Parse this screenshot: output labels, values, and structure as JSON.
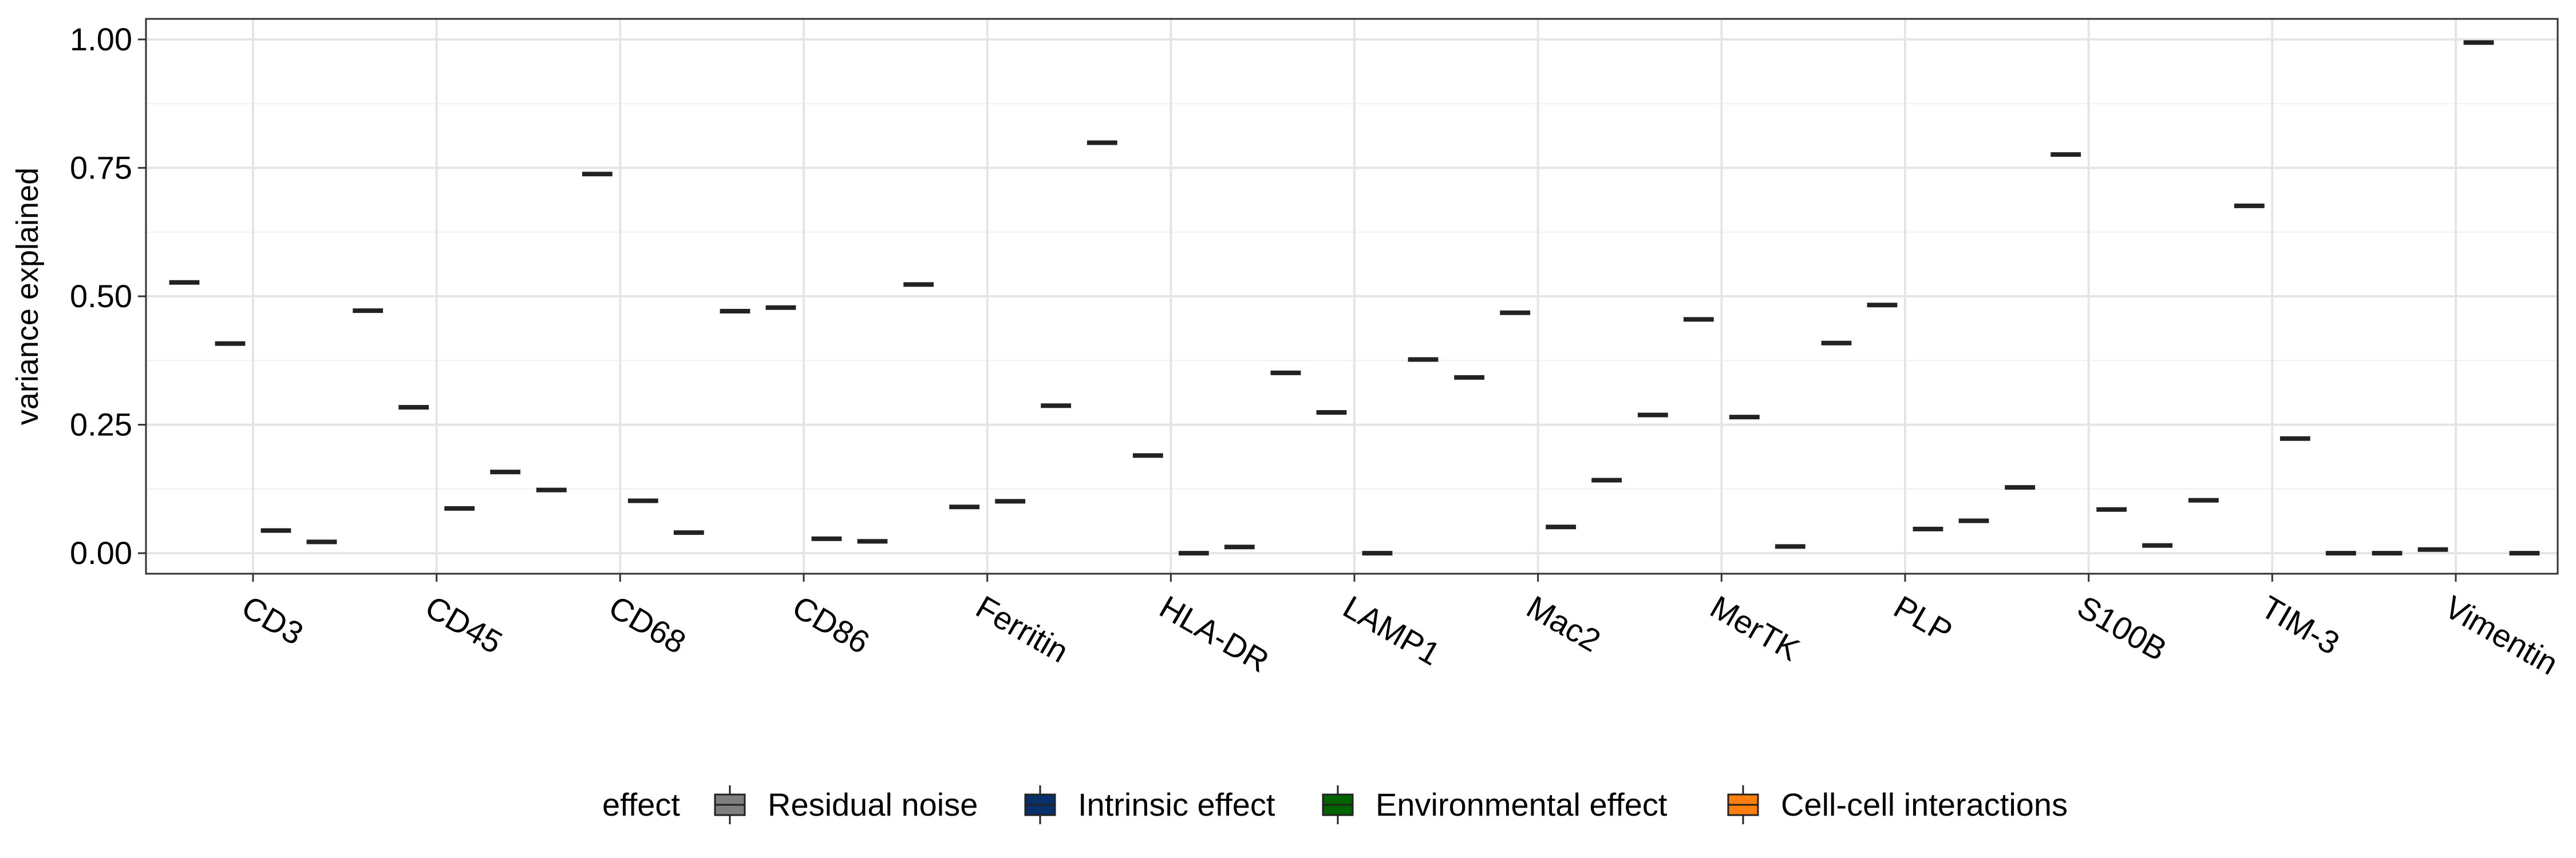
{
  "chart_data": {
    "type": "boxplot",
    "xlabel": "",
    "ylabel": "variance explained",
    "ylim": [
      -0.04,
      1.04
    ],
    "yticks": [
      0.0,
      0.25,
      0.5,
      0.75,
      1.0
    ],
    "ytick_labels": [
      "0.00",
      "0.25",
      "0.50",
      "0.75",
      "1.00"
    ],
    "grid": true,
    "legend_position": "bottom",
    "legend_title": "effect",
    "categories": [
      "CD3",
      "CD45",
      "CD68",
      "CD86",
      "Ferritin",
      "HLA-DR",
      "LAMP1",
      "Mac2",
      "MerTK",
      "PLP",
      "S100B",
      "TIM-3",
      "Vimentin"
    ],
    "series": [
      {
        "name": "Residual noise",
        "color": "#7f7f7f",
        "values": [
          0.527,
          0.472,
          0.123,
          0.471,
          0.523,
          0.799,
          0.351,
          0.342,
          0.269,
          0.409,
          0.128,
          0.103,
          0.0
        ]
      },
      {
        "name": "Intrinsic effect",
        "color": "#08306b",
        "values": [
          0.408,
          0.284,
          0.738,
          0.478,
          0.09,
          0.19,
          0.274,
          0.468,
          0.455,
          0.483,
          0.776,
          0.676,
          0.007
        ]
      },
      {
        "name": "Environmental effect",
        "color": "#006400",
        "values": [
          0.044,
          0.087,
          0.102,
          0.028,
          0.101,
          0.0,
          0.0,
          0.051,
          0.265,
          0.047,
          0.085,
          0.223,
          0.994
        ]
      },
      {
        "name": "Cell-cell interactions",
        "color": "#ff7f0e",
        "values": [
          0.022,
          0.158,
          0.04,
          0.023,
          0.287,
          0.012,
          0.377,
          0.142,
          0.013,
          0.063,
          0.015,
          0.0,
          0.0
        ]
      }
    ]
  }
}
